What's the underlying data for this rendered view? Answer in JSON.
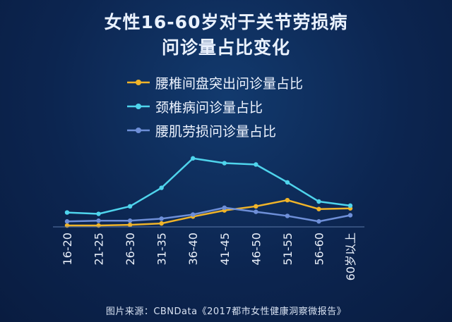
{
  "title_line1": "女性16-60岁对于关节劳损病",
  "title_line2": "问诊量占比变化",
  "source": "图片来源：CBNData《2017都市女性健康洞察微报告》",
  "chart_data": {
    "type": "line",
    "categories": [
      "16-20",
      "21-25",
      "26-30",
      "31-35",
      "36-40",
      "41-45",
      "46-50",
      "51-55",
      "56-60",
      "60岁以上"
    ],
    "series": [
      {
        "name": "腰椎间盘突出问诊量占比",
        "color": "#f0b429",
        "values": [
          1.0,
          1.0,
          1.5,
          2.5,
          7.5,
          12.0,
          15.0,
          19.5,
          13.0,
          13.5
        ]
      },
      {
        "name": "颈椎病问诊量占比",
        "color": "#4fd4ec",
        "values": [
          10.5,
          9.5,
          15.0,
          28.5,
          50.0,
          46.5,
          45.5,
          32.5,
          18.5,
          15.5
        ]
      },
      {
        "name": "腰肌劳损问诊量占比",
        "color": "#6e8fd8",
        "values": [
          4.0,
          4.5,
          4.5,
          6.0,
          9.0,
          14.0,
          11.0,
          8.0,
          4.0,
          8.5
        ]
      }
    ],
    "ylim": [
      0,
      55
    ],
    "grid": false,
    "legend": "top-center"
  }
}
